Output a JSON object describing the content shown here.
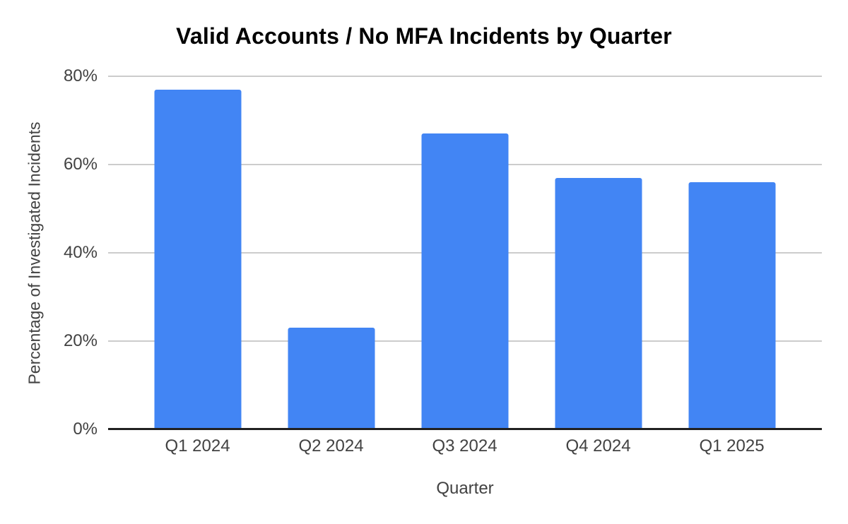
{
  "chart_data": {
    "type": "bar",
    "title": "Valid Accounts / No MFA Incidents by Quarter",
    "xlabel": "Quarter",
    "ylabel": "Percentage of Investigated Incidents",
    "categories": [
      "Q1 2024",
      "Q2 2024",
      "Q3 2024",
      "Q4 2024",
      "Q1 2025"
    ],
    "values": [
      77,
      23,
      67,
      57,
      56
    ],
    "unit": "%",
    "ylim": [
      0,
      80
    ],
    "yticks": [
      {
        "value": 0,
        "label": "0%"
      },
      {
        "value": 20,
        "label": "20%"
      },
      {
        "value": 40,
        "label": "40%"
      },
      {
        "value": 60,
        "label": "60%"
      },
      {
        "value": 80,
        "label": "80%"
      }
    ],
    "grid": true,
    "legend_position": "none",
    "colors": {
      "bar": "#4285f4",
      "gridline": "#cccccc",
      "axis_line": "#212121",
      "tick_label": "#424242",
      "axis_title": "#424242",
      "title": "#000000",
      "background": "#ffffff"
    }
  }
}
